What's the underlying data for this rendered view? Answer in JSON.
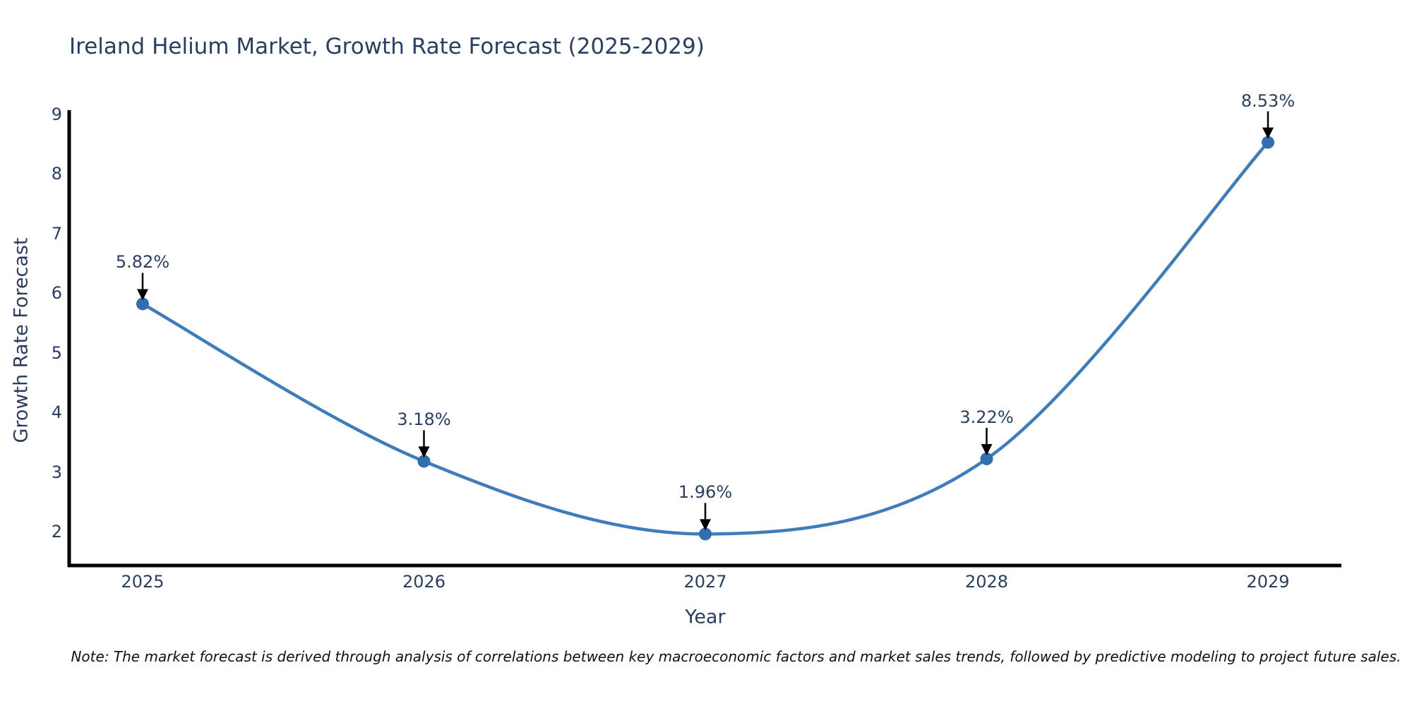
{
  "title": "Ireland Helium Market, Growth Rate Forecast (2025-2029)",
  "note": "Note: The market forecast is derived through analysis of correlations between key macroeconomic factors and market sales trends, followed by predictive modeling to project future sales.",
  "x_axis": {
    "label": "Year"
  },
  "y_axis": {
    "label": "Growth Rate Forecast"
  },
  "chart_data": {
    "type": "line",
    "title": "Ireland Helium Market, Growth Rate Forecast (2025-2029)",
    "xlabel": "Year",
    "ylabel": "Growth Rate Forecast",
    "categories": [
      "2025",
      "2026",
      "2027",
      "2028",
      "2029"
    ],
    "x": [
      2025,
      2026,
      2027,
      2028,
      2029
    ],
    "values": [
      5.82,
      3.18,
      1.96,
      3.22,
      8.53
    ],
    "point_labels": [
      "5.82%",
      "3.18%",
      "1.96%",
      "3.22%",
      "8.53%"
    ],
    "y_ticks": [
      2,
      3,
      4,
      5,
      6,
      7,
      8,
      9
    ],
    "ylim": [
      1.43,
      9.03
    ],
    "xlim": [
      2024.74,
      2029.26
    ],
    "line_shape": "spline",
    "grid": false,
    "legend": false,
    "annotations_have_arrows": true,
    "colors": {
      "line": "#3f7cba",
      "marker": "#336fad",
      "axis_line": "#000000",
      "arrow": "#000000",
      "text": "#2a3f5f"
    }
  }
}
